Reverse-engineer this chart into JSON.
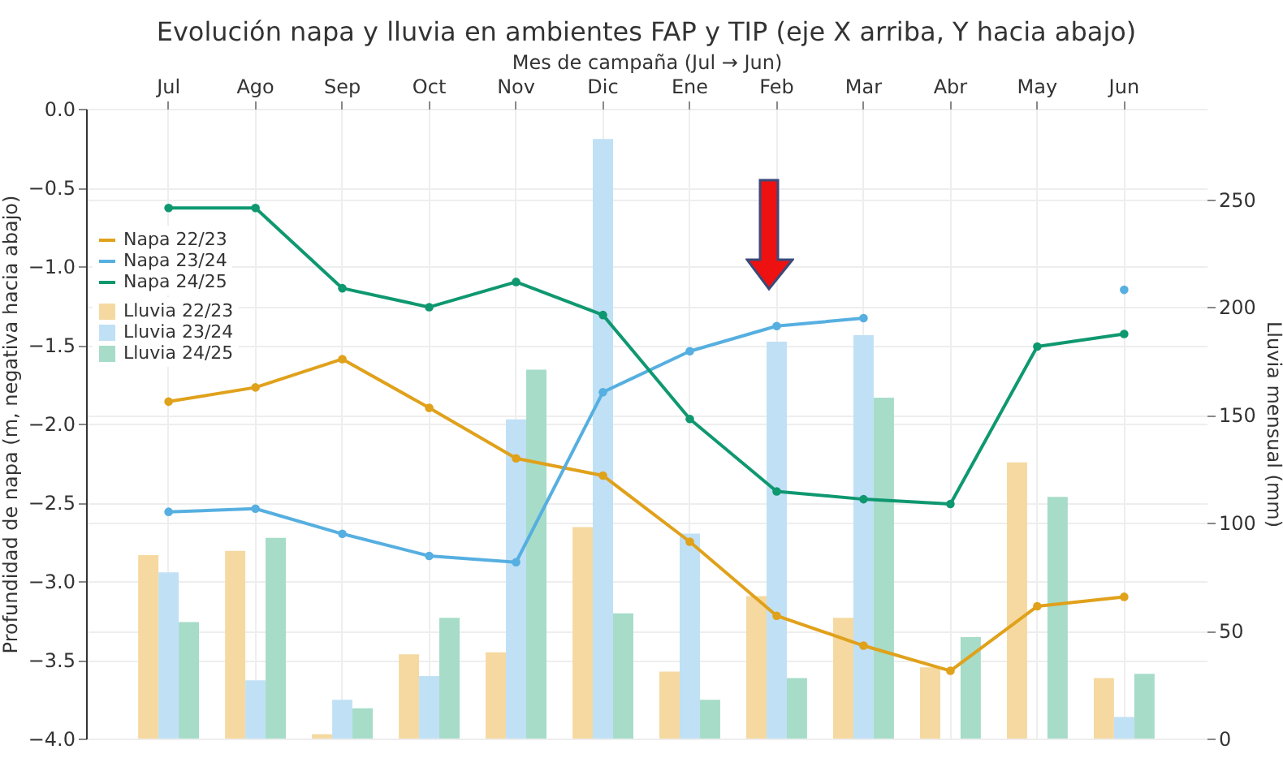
{
  "chart_data": {
    "type": "bar",
    "title": "Evolución napa y lluvia en ambientes FAP y TIP (eje X arriba, Y hacia abajo)",
    "xlabel": "Mes de campaña (Jul → Jun)",
    "ylabel": "Profundidad de napa (m, negativa hacia abajo)",
    "y2label": "Lluvia mensual (mm)",
    "categories": [
      "Jul",
      "Ago",
      "Sep",
      "Oct",
      "Nov",
      "Dic",
      "Ene",
      "Feb",
      "Mar",
      "Abr",
      "May",
      "Jun"
    ],
    "series": [
      {
        "name": "Lluvia 22/23",
        "axis": "y2",
        "color": "#f5d9a0",
        "values": [
          85,
          87,
          2,
          39,
          40,
          98,
          31,
          66,
          56,
          33,
          128,
          28
        ]
      },
      {
        "name": "Lluvia 23/24",
        "axis": "y2",
        "color": "#c0e0f5",
        "values": [
          77,
          27,
          18,
          29,
          148,
          278,
          95,
          184,
          187,
          null,
          null,
          10
        ]
      },
      {
        "name": "Lluvia 24/25",
        "axis": "y2",
        "color": "#a6dcc8",
        "values": [
          54,
          93,
          14,
          56,
          171,
          58,
          18,
          28,
          158,
          47,
          112,
          30
        ]
      },
      {
        "name": "Napa 22/23",
        "type": "line",
        "axis": "y",
        "color": "#e0a11b",
        "values": [
          -1.86,
          -1.77,
          -1.59,
          -1.9,
          -2.22,
          -2.33,
          -2.75,
          -3.22,
          -3.41,
          -3.57,
          -3.16,
          -3.1
        ]
      },
      {
        "name": "Napa 23/24",
        "type": "line",
        "axis": "y",
        "color": "#56afe0",
        "values": [
          -2.56,
          -2.54,
          -2.7,
          -2.84,
          -2.88,
          -1.8,
          -1.54,
          -1.38,
          -1.33,
          null,
          null,
          -1.15
        ]
      },
      {
        "name": "Napa 24/25",
        "type": "line",
        "axis": "y",
        "color": "#0f9870",
        "values": [
          -0.63,
          -0.63,
          -1.14,
          -1.26,
          -1.1,
          -1.31,
          -1.97,
          -2.43,
          -2.48,
          -2.51,
          -1.51,
          -1.43
        ]
      }
    ],
    "ylim": [
      -4,
      0
    ],
    "yticks": [
      {
        "value": -4,
        "label": "−4.0"
      },
      {
        "value": -3.5,
        "label": "−3.5"
      },
      {
        "value": -3,
        "label": "−3.0"
      },
      {
        "value": -2.5,
        "label": "−2.5"
      },
      {
        "value": -2,
        "label": "−2.0"
      },
      {
        "value": -1.5,
        "label": "−1.5"
      },
      {
        "value": -1,
        "label": "−1.0"
      },
      {
        "value": -0.5,
        "label": "−0.5"
      },
      {
        "value": 0,
        "label": "0.0"
      }
    ],
    "y2lim": [
      0,
      292
    ],
    "y2ticks": [
      0,
      50,
      100,
      150,
      200,
      250
    ],
    "grid": true,
    "legend": "top left",
    "marker": "circle",
    "line_style": "solid"
  }
}
